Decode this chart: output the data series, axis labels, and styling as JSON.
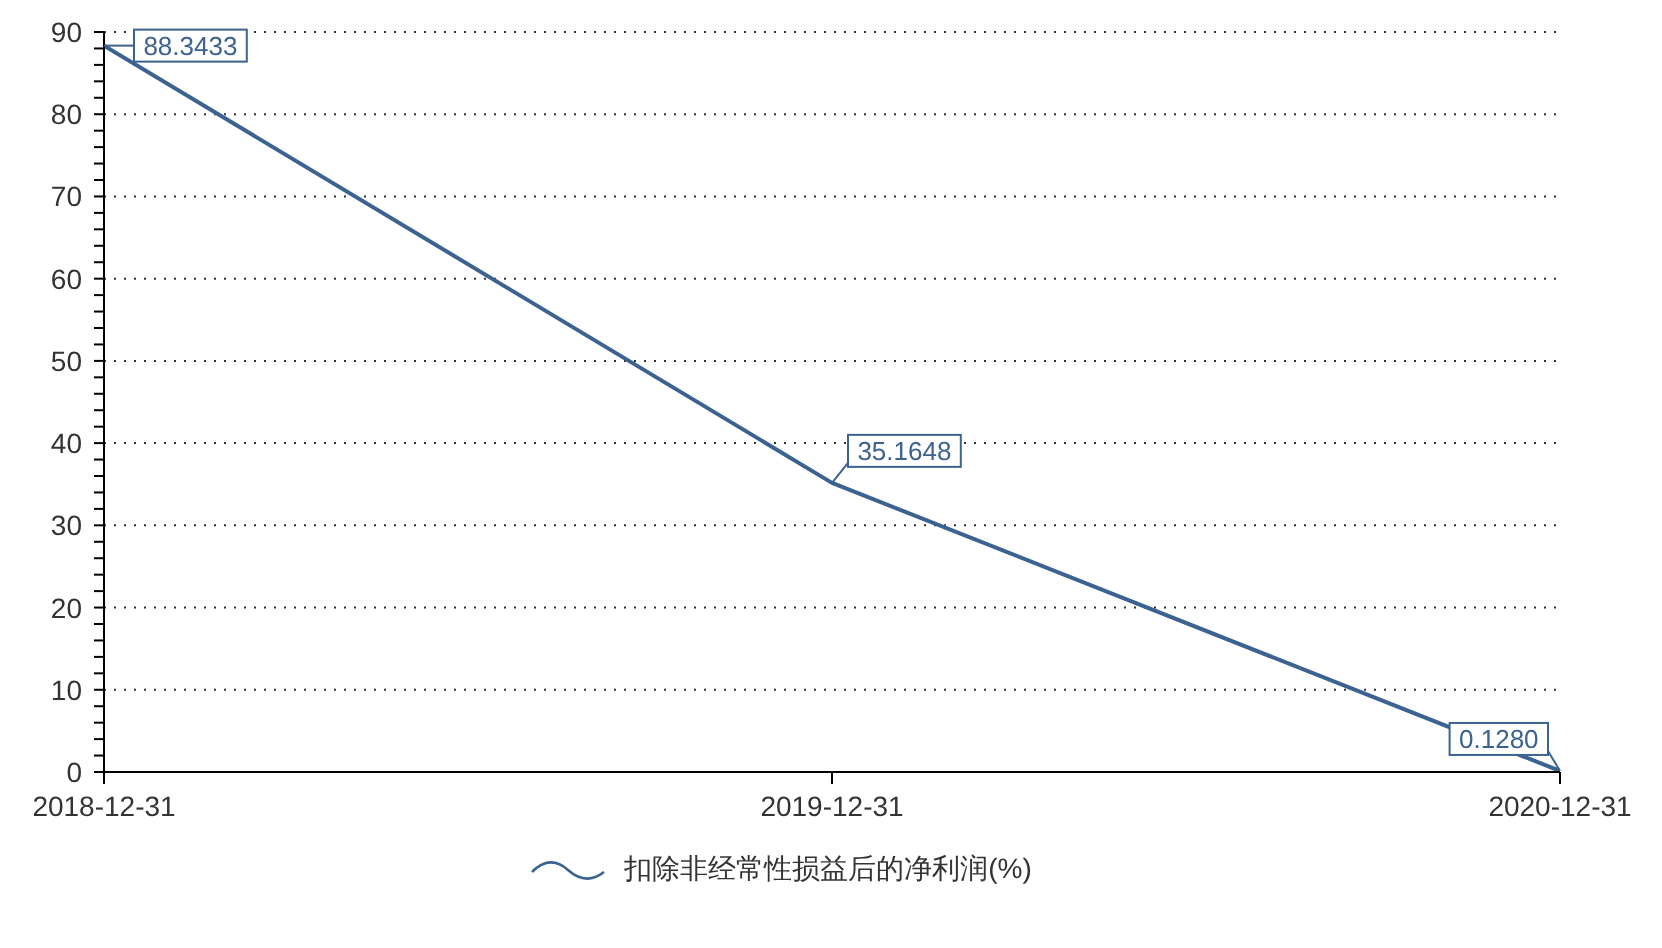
{
  "chart_data": {
    "type": "line",
    "categories": [
      "2018-12-31",
      "2019-12-31",
      "2020-12-31"
    ],
    "series": [
      {
        "name": "扣除非经常性损益后的净利润(%)",
        "color": "#3b6291",
        "values": [
          88.3433,
          35.1648,
          0.128
        ],
        "value_labels": [
          "88.3433",
          "35.1648",
          "0.1280"
        ]
      }
    ],
    "ylim": [
      0,
      90
    ],
    "yticks": [
      0,
      {
        "value": 2,
        "label": null
      },
      {
        "value": 4,
        "label": null
      },
      {
        "value": 6,
        "label": null
      },
      {
        "value": 8,
        "label": null
      },
      10,
      {
        "value": 12,
        "label": null
      },
      {
        "value": 14,
        "label": null
      },
      {
        "value": 16,
        "label": null
      },
      {
        "value": 18,
        "label": null
      },
      20,
      {
        "value": 22,
        "label": null
      },
      {
        "value": 24,
        "label": null
      },
      {
        "value": 26,
        "label": null
      },
      {
        "value": 28,
        "label": null
      },
      30,
      {
        "value": 32,
        "label": null
      },
      {
        "value": 34,
        "label": null
      },
      {
        "value": 36,
        "label": null
      },
      {
        "value": 38,
        "label": null
      },
      40,
      {
        "value": 42,
        "label": null
      },
      {
        "value": 44,
        "label": null
      },
      {
        "value": 46,
        "label": null
      },
      {
        "value": 48,
        "label": null
      },
      50,
      {
        "value": 52,
        "label": null
      },
      {
        "value": 54,
        "label": null
      },
      {
        "value": 56,
        "label": null
      },
      {
        "value": 58,
        "label": null
      },
      60,
      {
        "value": 62,
        "label": null
      },
      {
        "value": 64,
        "label": null
      },
      {
        "value": 66,
        "label": null
      },
      {
        "value": 68,
        "label": null
      },
      70,
      {
        "value": 72,
        "label": null
      },
      {
        "value": 74,
        "label": null
      },
      {
        "value": 76,
        "label": null
      },
      {
        "value": 78,
        "label": null
      },
      80,
      {
        "value": 82,
        "label": null
      },
      {
        "value": 84,
        "label": null
      },
      {
        "value": 86,
        "label": null
      },
      {
        "value": 88,
        "label": null
      },
      90
    ],
    "grid": "y",
    "legend": "bottom",
    "line_style": "solid"
  }
}
